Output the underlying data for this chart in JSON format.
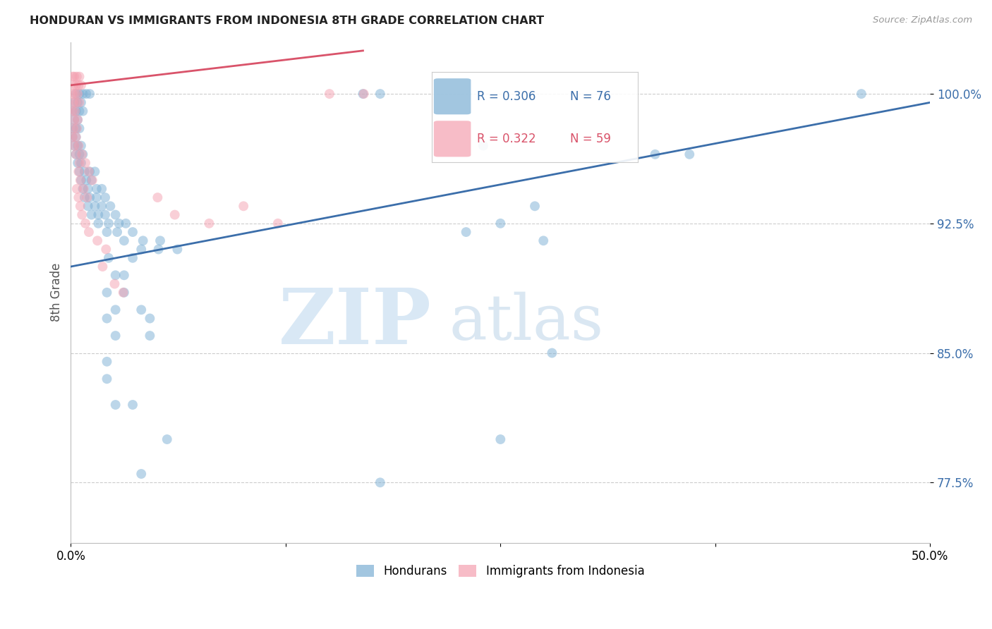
{
  "title": "HONDURAN VS IMMIGRANTS FROM INDONESIA 8TH GRADE CORRELATION CHART",
  "source": "Source: ZipAtlas.com",
  "ylabel": "8th Grade",
  "y_ticks": [
    77.5,
    85.0,
    92.5,
    100.0
  ],
  "y_tick_labels": [
    "77.5%",
    "85.0%",
    "92.5%",
    "100.0%"
  ],
  "xlim": [
    0.0,
    50.0
  ],
  "ylim": [
    74.0,
    103.0
  ],
  "blue_color": "#7BAFD4",
  "pink_color": "#F4A0B0",
  "blue_line_color": "#3B6EAA",
  "pink_line_color": "#D9536A",
  "blue_scatter": [
    [
      0.3,
      100.0
    ],
    [
      0.5,
      100.0
    ],
    [
      0.7,
      100.0
    ],
    [
      0.9,
      100.0
    ],
    [
      1.1,
      100.0
    ],
    [
      0.2,
      99.5
    ],
    [
      0.4,
      99.5
    ],
    [
      0.6,
      99.5
    ],
    [
      0.1,
      99.0
    ],
    [
      0.3,
      99.0
    ],
    [
      0.5,
      99.0
    ],
    [
      0.7,
      99.0
    ],
    [
      0.2,
      98.5
    ],
    [
      0.4,
      98.5
    ],
    [
      0.1,
      98.0
    ],
    [
      0.3,
      98.0
    ],
    [
      0.5,
      98.0
    ],
    [
      0.1,
      97.5
    ],
    [
      0.3,
      97.5
    ],
    [
      0.2,
      97.0
    ],
    [
      0.4,
      97.0
    ],
    [
      0.6,
      97.0
    ],
    [
      0.3,
      96.5
    ],
    [
      0.5,
      96.5
    ],
    [
      0.7,
      96.5
    ],
    [
      0.4,
      96.0
    ],
    [
      0.6,
      96.0
    ],
    [
      0.5,
      95.5
    ],
    [
      0.8,
      95.5
    ],
    [
      1.1,
      95.5
    ],
    [
      1.4,
      95.5
    ],
    [
      0.6,
      95.0
    ],
    [
      0.9,
      95.0
    ],
    [
      1.2,
      95.0
    ],
    [
      0.7,
      94.5
    ],
    [
      1.0,
      94.5
    ],
    [
      1.5,
      94.5
    ],
    [
      1.8,
      94.5
    ],
    [
      0.8,
      94.0
    ],
    [
      1.1,
      94.0
    ],
    [
      1.5,
      94.0
    ],
    [
      2.0,
      94.0
    ],
    [
      1.0,
      93.5
    ],
    [
      1.4,
      93.5
    ],
    [
      1.8,
      93.5
    ],
    [
      2.3,
      93.5
    ],
    [
      1.2,
      93.0
    ],
    [
      1.6,
      93.0
    ],
    [
      2.0,
      93.0
    ],
    [
      2.6,
      93.0
    ],
    [
      1.6,
      92.5
    ],
    [
      2.2,
      92.5
    ],
    [
      2.8,
      92.5
    ],
    [
      3.2,
      92.5
    ],
    [
      2.1,
      92.0
    ],
    [
      2.7,
      92.0
    ],
    [
      3.6,
      92.0
    ],
    [
      3.1,
      91.5
    ],
    [
      4.2,
      91.5
    ],
    [
      5.2,
      91.5
    ],
    [
      4.1,
      91.0
    ],
    [
      5.1,
      91.0
    ],
    [
      6.2,
      91.0
    ],
    [
      2.2,
      90.5
    ],
    [
      3.6,
      90.5
    ],
    [
      2.6,
      89.5
    ],
    [
      3.1,
      89.5
    ],
    [
      2.1,
      88.5
    ],
    [
      3.1,
      88.5
    ],
    [
      2.6,
      87.5
    ],
    [
      4.1,
      87.5
    ],
    [
      2.1,
      87.0
    ],
    [
      4.6,
      87.0
    ],
    [
      2.6,
      86.0
    ],
    [
      4.6,
      86.0
    ],
    [
      2.1,
      84.5
    ],
    [
      2.1,
      83.5
    ],
    [
      2.6,
      82.0
    ],
    [
      3.6,
      82.0
    ],
    [
      5.6,
      80.0
    ],
    [
      4.1,
      78.0
    ],
    [
      17.0,
      100.0
    ],
    [
      18.0,
      100.0
    ],
    [
      46.0,
      100.0
    ],
    [
      24.0,
      97.0
    ],
    [
      34.0,
      96.5
    ],
    [
      36.0,
      96.5
    ],
    [
      27.0,
      93.5
    ],
    [
      25.0,
      92.5
    ],
    [
      23.0,
      92.0
    ],
    [
      27.5,
      91.5
    ],
    [
      28.0,
      85.0
    ],
    [
      25.0,
      80.0
    ],
    [
      18.0,
      77.5
    ]
  ],
  "pink_scatter": [
    [
      0.1,
      101.0
    ],
    [
      0.2,
      101.0
    ],
    [
      0.35,
      101.0
    ],
    [
      0.5,
      101.0
    ],
    [
      0.15,
      100.5
    ],
    [
      0.3,
      100.5
    ],
    [
      0.45,
      100.5
    ],
    [
      0.6,
      100.5
    ],
    [
      0.1,
      100.0
    ],
    [
      0.25,
      100.0
    ],
    [
      0.4,
      100.0
    ],
    [
      0.15,
      99.5
    ],
    [
      0.3,
      99.5
    ],
    [
      0.5,
      99.5
    ],
    [
      0.1,
      99.0
    ],
    [
      0.25,
      99.0
    ],
    [
      0.2,
      98.5
    ],
    [
      0.4,
      98.5
    ],
    [
      0.15,
      98.0
    ],
    [
      0.35,
      98.0
    ],
    [
      0.1,
      97.5
    ],
    [
      0.3,
      97.5
    ],
    [
      0.2,
      97.0
    ],
    [
      0.45,
      97.0
    ],
    [
      0.3,
      96.5
    ],
    [
      0.65,
      96.5
    ],
    [
      0.5,
      96.0
    ],
    [
      0.85,
      96.0
    ],
    [
      0.45,
      95.5
    ],
    [
      1.05,
      95.5
    ],
    [
      0.55,
      95.0
    ],
    [
      1.25,
      95.0
    ],
    [
      0.35,
      94.5
    ],
    [
      0.75,
      94.5
    ],
    [
      0.45,
      94.0
    ],
    [
      0.95,
      94.0
    ],
    [
      0.55,
      93.5
    ],
    [
      0.65,
      93.0
    ],
    [
      0.85,
      92.5
    ],
    [
      1.05,
      92.0
    ],
    [
      1.55,
      91.5
    ],
    [
      2.05,
      91.0
    ],
    [
      1.85,
      90.0
    ],
    [
      2.55,
      89.0
    ],
    [
      3.05,
      88.5
    ],
    [
      5.05,
      94.0
    ],
    [
      6.05,
      93.0
    ],
    [
      8.05,
      92.5
    ],
    [
      10.05,
      93.5
    ],
    [
      12.05,
      92.5
    ],
    [
      15.05,
      100.0
    ],
    [
      17.05,
      100.0
    ]
  ],
  "blue_line": {
    "x0": 0.0,
    "x1": 50.0,
    "y0": 90.0,
    "y1": 99.5
  },
  "pink_line": {
    "x0": 0.0,
    "x1": 17.0,
    "y0": 100.5,
    "y1": 102.5
  }
}
